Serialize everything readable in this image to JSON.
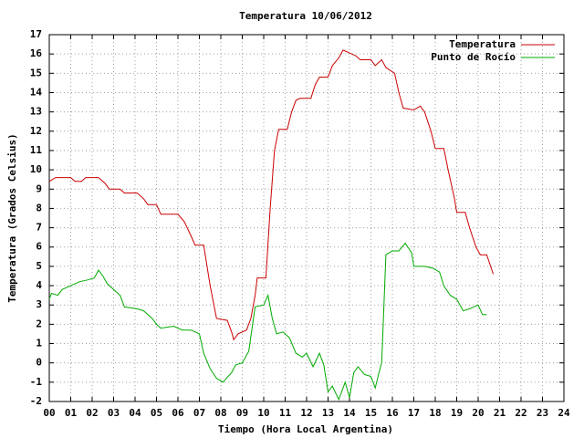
{
  "chart_data": {
    "type": "line",
    "title": "Temperatura 10/06/2012",
    "xlabel": "Tiempo (Hora Local Argentina)",
    "ylabel": "Temperatura (Grados Celsius)",
    "xlim": [
      0,
      24
    ],
    "ylim": [
      -2,
      17
    ],
    "xticks": [
      {
        "value": 0,
        "label": "00"
      },
      {
        "value": 1,
        "label": "01"
      },
      {
        "value": 2,
        "label": "02"
      },
      {
        "value": 3,
        "label": "03"
      },
      {
        "value": 4,
        "label": "04"
      },
      {
        "value": 5,
        "label": "05"
      },
      {
        "value": 6,
        "label": "06"
      },
      {
        "value": 7,
        "label": "07"
      },
      {
        "value": 8,
        "label": "08"
      },
      {
        "value": 9,
        "label": "09"
      },
      10,
      11,
      12,
      13,
      14,
      15,
      16,
      17,
      18,
      19,
      20,
      21,
      22,
      23,
      24
    ],
    "yticks": [
      -2,
      -1,
      0,
      1,
      2,
      3,
      4,
      5,
      6,
      7,
      8,
      9,
      10,
      11,
      12,
      13,
      14,
      15,
      16,
      17
    ],
    "grid": true,
    "legend": "top-right",
    "series": [
      {
        "name": "Temperatura",
        "color": "#cc0000",
        "x": [
          0,
          0.3,
          1.0,
          1.2,
          1.5,
          1.7,
          2.3,
          2.6,
          2.8,
          3.3,
          3.5,
          4.1,
          4.4,
          4.6,
          5.0,
          5.2,
          6.0,
          6.3,
          6.6,
          6.8,
          7.2,
          7.5,
          7.8,
          8.3,
          8.5,
          8.6,
          8.8,
          9.2,
          9.4,
          9.6,
          9.7,
          10.1,
          10.3,
          10.5,
          10.7,
          11.1,
          11.3,
          11.5,
          11.7,
          12.2,
          12.4,
          12.6,
          13.0,
          13.2,
          13.5,
          13.7,
          13.9,
          14.3,
          14.5,
          15.0,
          15.2,
          15.5,
          15.7,
          16.1,
          16.3,
          16.5,
          17.0,
          17.3,
          17.5,
          17.8,
          18.0,
          18.4,
          18.6,
          18.9,
          19.0,
          19.4,
          19.6,
          19.9,
          20.1,
          20.4,
          20.7
        ],
        "values": [
          9.4,
          9.6,
          9.6,
          9.4,
          9.4,
          9.6,
          9.6,
          9.3,
          9.0,
          9.0,
          8.8,
          8.8,
          8.5,
          8.2,
          8.2,
          7.7,
          7.7,
          7.3,
          6.6,
          6.1,
          6.1,
          4.0,
          2.3,
          2.2,
          1.6,
          1.2,
          1.5,
          1.7,
          2.3,
          3.5,
          4.4,
          4.4,
          8.0,
          11.0,
          12.1,
          12.1,
          13.0,
          13.6,
          13.7,
          13.7,
          14.4,
          14.8,
          14.8,
          15.4,
          15.8,
          16.2,
          16.1,
          15.9,
          15.7,
          15.7,
          15.4,
          15.7,
          15.3,
          15.0,
          14.0,
          13.2,
          13.1,
          13.3,
          13.0,
          12.0,
          11.1,
          11.1,
          10.0,
          8.5,
          7.8,
          7.8,
          7.0,
          6.0,
          5.6,
          5.6,
          4.6
        ]
      },
      {
        "name": "Punto de Rocío",
        "color": "#00aa00",
        "x": [
          0,
          0.1,
          0.4,
          0.6,
          1.0,
          1.4,
          1.8,
          2.1,
          2.3,
          2.5,
          2.7,
          3.0,
          3.3,
          3.5,
          4.1,
          4.4,
          4.8,
          5.0,
          5.2,
          5.8,
          6.2,
          6.6,
          7.0,
          7.2,
          7.5,
          7.8,
          8.1,
          8.5,
          8.7,
          9.0,
          9.3,
          9.6,
          10.0,
          10.2,
          10.4,
          10.6,
          10.9,
          11.2,
          11.5,
          11.8,
          12.0,
          12.3,
          12.6,
          12.8,
          13.0,
          13.2,
          13.5,
          13.8,
          14.0,
          14.2,
          14.4,
          14.7,
          15.0,
          15.2,
          15.4,
          15.5,
          15.7,
          16.0,
          16.3,
          16.6,
          16.9,
          17.0,
          17.5,
          17.9,
          18.2,
          18.4,
          18.7,
          19.0,
          19.3,
          19.6,
          20.0,
          20.2,
          20.4
        ],
        "values": [
          3.3,
          3.6,
          3.5,
          3.8,
          4.0,
          4.2,
          4.3,
          4.4,
          4.8,
          4.5,
          4.1,
          3.8,
          3.5,
          2.9,
          2.8,
          2.7,
          2.3,
          2.0,
          1.8,
          1.9,
          1.7,
          1.7,
          1.5,
          0.5,
          -0.3,
          -0.8,
          -1.0,
          -0.5,
          -0.1,
          0.0,
          0.6,
          2.9,
          3.0,
          3.5,
          2.3,
          1.5,
          1.6,
          1.3,
          0.5,
          0.3,
          0.5,
          -0.2,
          0.5,
          -0.1,
          -1.5,
          -1.2,
          -1.9,
          -1.0,
          -1.8,
          -0.5,
          -0.2,
          -0.6,
          -0.7,
          -1.3,
          -0.4,
          0.0,
          5.6,
          5.8,
          5.8,
          6.2,
          5.7,
          5.0,
          5.0,
          4.9,
          4.7,
          4.0,
          3.5,
          3.3,
          2.7,
          2.8,
          3.0,
          2.5,
          2.5
        ]
      }
    ]
  }
}
